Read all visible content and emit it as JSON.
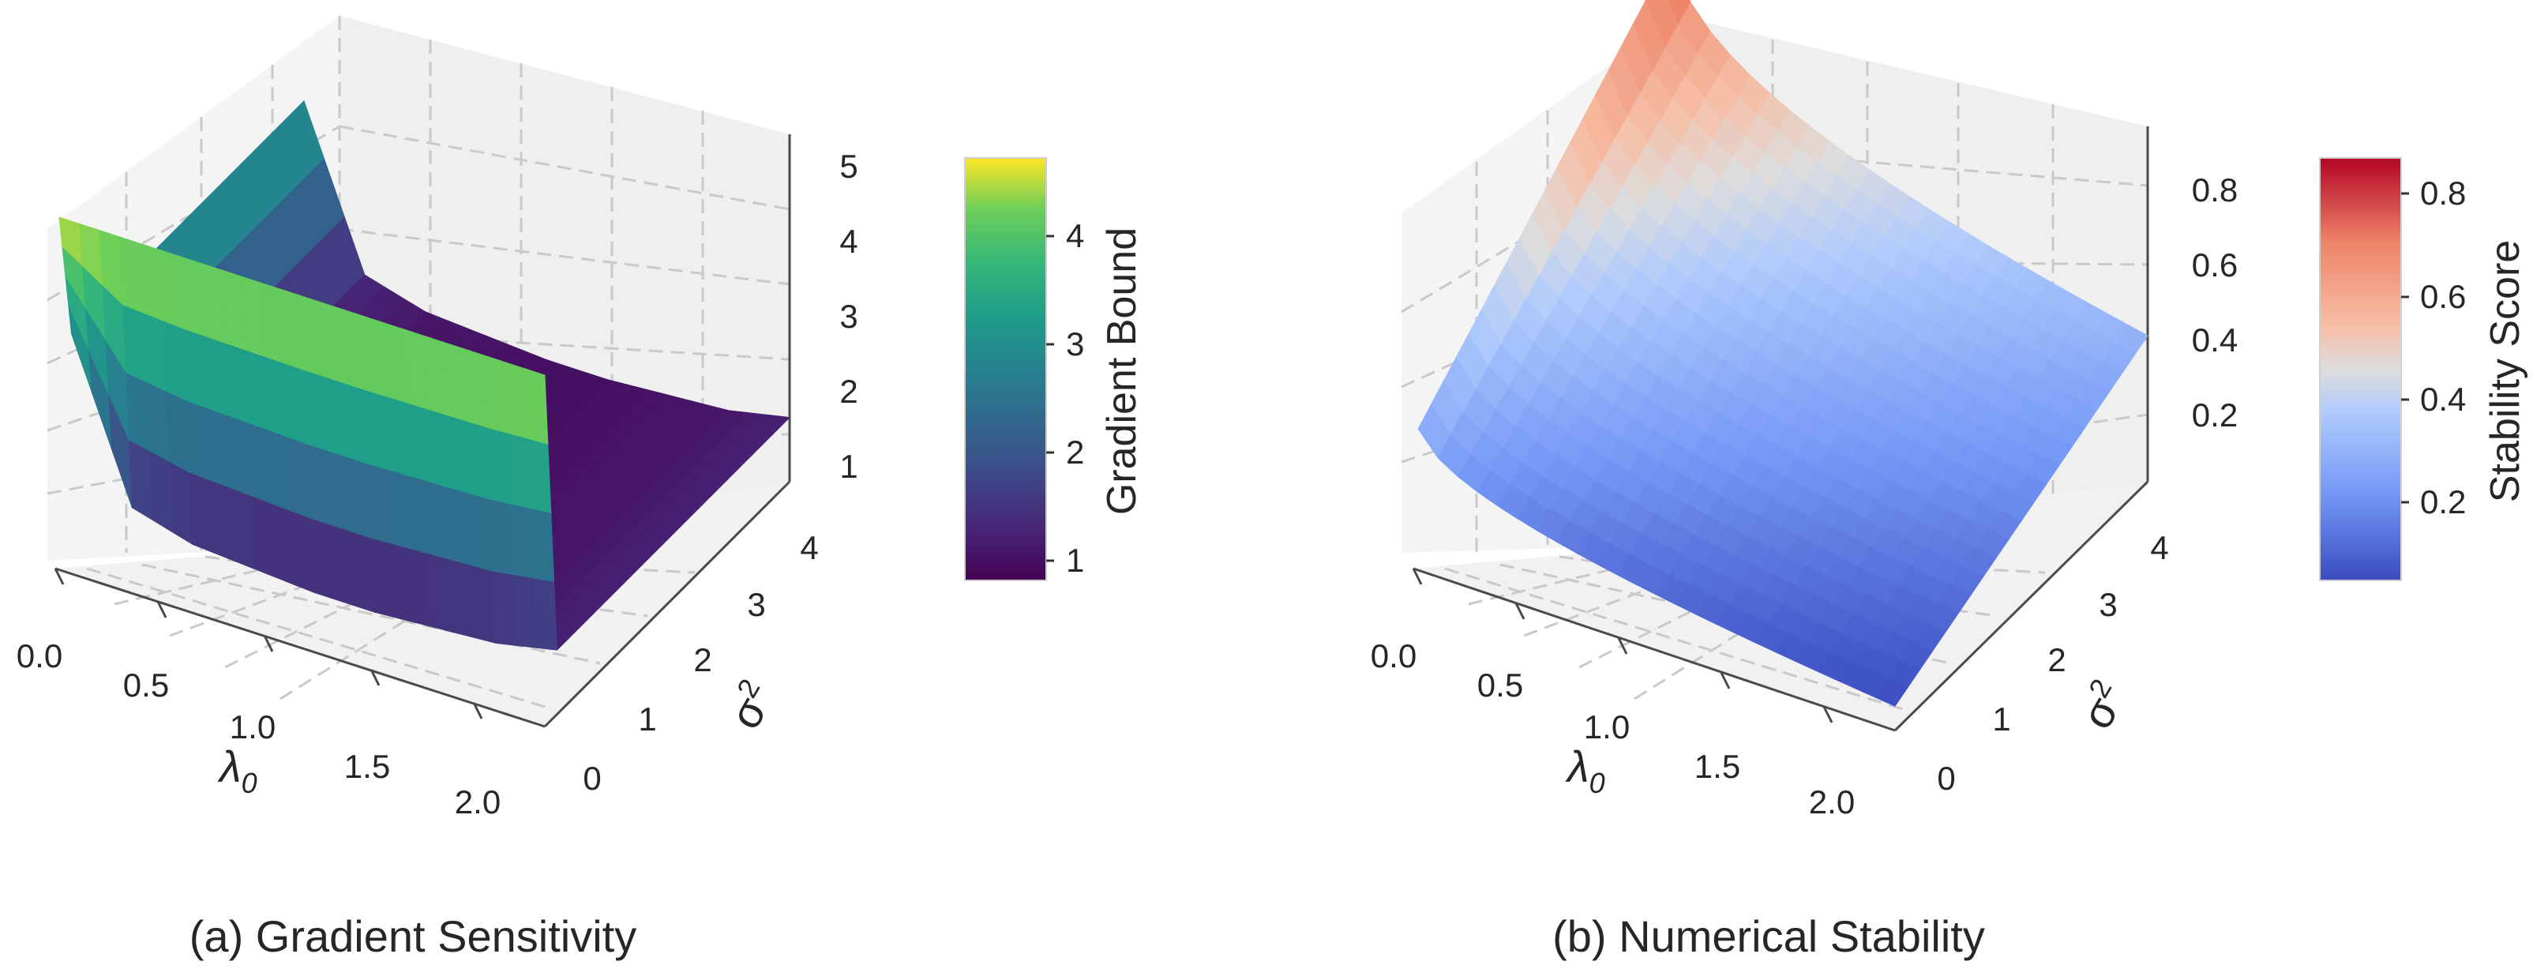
{
  "charts": [
    {
      "caption": "(a) Gradient Sensitivity",
      "xlabel": "λ",
      "xlabel_sub": "0",
      "ylabel": "σ",
      "ylabel_sup": "2",
      "colorbar_label": "Gradient Bound",
      "xticks": [
        "0.0",
        "0.5",
        "1.0",
        "1.5",
        "2.0"
      ],
      "yticks": [
        "0",
        "1",
        "2",
        "3",
        "4"
      ],
      "zticks": [
        "1",
        "2",
        "3",
        "4",
        "5"
      ],
      "cbticks": [
        "1",
        "2",
        "3",
        "4"
      ]
    },
    {
      "caption": "(b) Numerical Stability",
      "xlabel": "λ",
      "xlabel_sub": "0",
      "ylabel": "σ",
      "ylabel_sup": "2",
      "colorbar_label": "Stability Score",
      "xticks": [
        "0.0",
        "0.5",
        "1.0",
        "1.5",
        "2.0"
      ],
      "yticks": [
        "0",
        "1",
        "2",
        "3",
        "4"
      ],
      "zticks": [
        "0.2",
        "0.4",
        "0.6",
        "0.8"
      ],
      "cbticks": [
        "0.2",
        "0.4",
        "0.6",
        "0.8"
      ]
    }
  ],
  "chart_data": [
    {
      "type": "surface3d",
      "title": "(a) Gradient Sensitivity",
      "x_name": "λ0",
      "y_name": "σ2",
      "z_name": "Gradient Bound",
      "x_range": [
        0,
        2
      ],
      "y_range": [
        0,
        4
      ],
      "z_range": [
        1,
        5
      ],
      "colorbar_range": [
        0.8,
        4.7
      ],
      "colormap": "viridis",
      "x": [
        0.0,
        0.25,
        0.5,
        0.75,
        1.0,
        1.25,
        1.5,
        1.75,
        2.0
      ],
      "y": [
        0.0,
        0.5,
        1.0,
        1.5,
        2.0,
        2.5,
        3.0,
        3.5,
        4.0
      ],
      "z_profile_over_x": [
        3.1,
        1.3,
        1.1,
        1.05,
        1.0,
        1.0,
        1.05,
        1.1,
        1.25
      ],
      "z_at_low_y": 4.6,
      "low_y_extent": 0.2,
      "grid": true
    },
    {
      "type": "surface3d",
      "title": "(b) Numerical Stability",
      "x_name": "λ0",
      "y_name": "σ2",
      "z_name": "Stability Score",
      "x_range": [
        0,
        2
      ],
      "y_range": [
        0,
        4
      ],
      "z_range": [
        0.0,
        0.9
      ],
      "colorbar_range": [
        0.05,
        0.87
      ],
      "colormap": "coolwarm",
      "x": [
        0.0,
        0.25,
        0.5,
        0.75,
        1.0,
        1.25,
        1.5,
        1.75,
        2.0
      ],
      "y": [
        0.0,
        0.5,
        1.0,
        1.5,
        2.0,
        2.5,
        3.0,
        3.5,
        4.0
      ],
      "z_corners": {
        "x0_y0": 0.35,
        "x2_y0": 0.05,
        "x0_y4": 0.87,
        "x2_y4": 0.3
      },
      "grid": true
    }
  ],
  "colors": {
    "pane": "#ebebeb",
    "grid": "#c8c8c8",
    "axis": "#555555"
  }
}
